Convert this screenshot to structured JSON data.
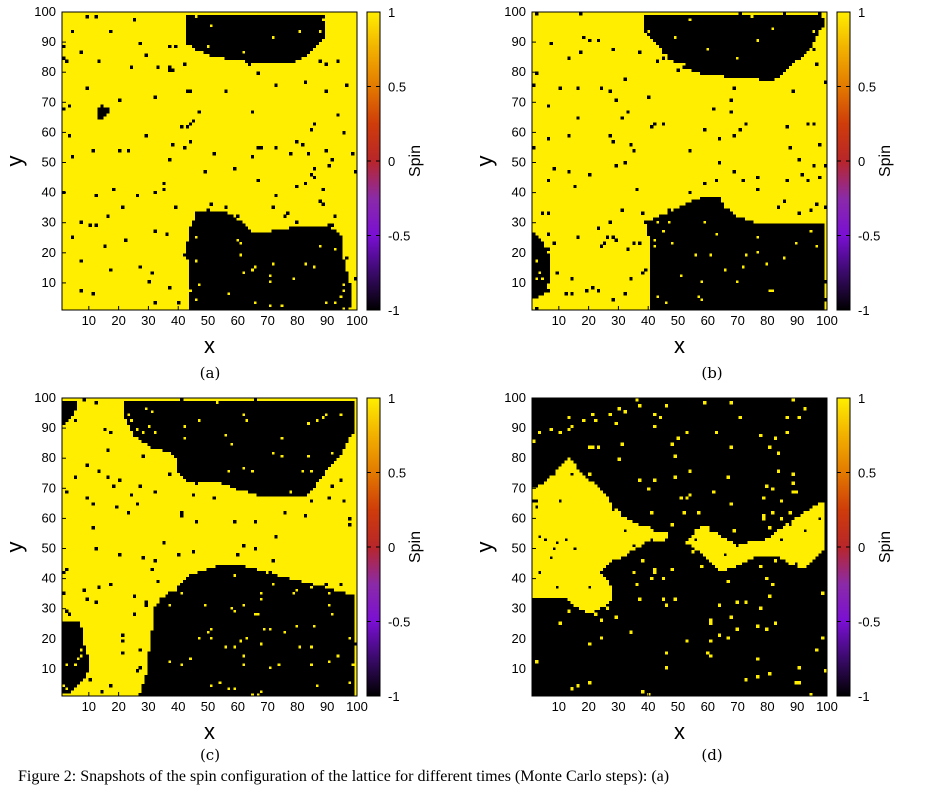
{
  "colors": {
    "up": "#ffee00",
    "down": "#000000",
    "colorbar_stops": [
      "#000000",
      "#3a0a6a",
      "#7a0fd4",
      "#8b2aa8",
      "#b8262a",
      "#cf3c0a",
      "#e37a00",
      "#f2b000",
      "#ffee00"
    ]
  },
  "chart_data": [
    {
      "type": "heatmap",
      "panel_label": "(a)",
      "xlabel": "x",
      "ylabel": "y",
      "xlim": [
        1,
        100
      ],
      "ylim": [
        1,
        100
      ],
      "xticks": [
        "10",
        "20",
        "30",
        "40",
        "50",
        "60",
        "70",
        "80",
        "90",
        "100"
      ],
      "yticks": [
        "10",
        "20",
        "30",
        "40",
        "50",
        "60",
        "70",
        "80",
        "90",
        "100"
      ],
      "colorbar": {
        "label": "Spin",
        "range": [
          -1,
          1
        ],
        "ticks": [
          "1",
          "0.5",
          "0",
          "-0.5",
          "-1"
        ]
      },
      "domain_model": {
        "background": 1,
        "regions": [
          {
            "value": -1,
            "polygon": [
              [
                44,
                1
              ],
              [
                44,
                16
              ],
              [
                42,
                19
              ],
              [
                44,
                28
              ],
              [
                46,
                33
              ],
              [
                55,
                34
              ],
              [
                60,
                31
              ],
              [
                65,
                27
              ],
              [
                72,
                27
              ],
              [
                78,
                28
              ],
              [
                85,
                29
              ],
              [
                92,
                28
              ],
              [
                95,
                26
              ],
              [
                96,
                18
              ],
              [
                98,
                10
              ],
              [
                99,
                6
              ],
              [
                98,
                1
              ]
            ]
          },
          {
            "value": -1,
            "polygon": [
              [
                43,
                100
              ],
              [
                43,
                90
              ],
              [
                46,
                88
              ],
              [
                51,
                86
              ],
              [
                56,
                85
              ],
              [
                63,
                84
              ],
              [
                70,
                84
              ],
              [
                74,
                84
              ],
              [
                80,
                84
              ],
              [
                84,
                86
              ],
              [
                89,
                91
              ],
              [
                90,
                95
              ],
              [
                88,
                100
              ]
            ]
          },
          {
            "value": -1,
            "polygon": [
              [
                12,
                69
              ],
              [
                16,
                69
              ],
              [
                17,
                67
              ],
              [
                15,
                65
              ],
              [
                13,
                65
              ]
            ]
          }
        ]
      }
    },
    {
      "type": "heatmap",
      "panel_label": "(b)",
      "xlabel": "x",
      "ylabel": "y",
      "xlim": [
        1,
        100
      ],
      "ylim": [
        1,
        100
      ],
      "xticks": [
        "10",
        "20",
        "30",
        "40",
        "50",
        "60",
        "70",
        "80",
        "90",
        "100"
      ],
      "yticks": [
        "10",
        "20",
        "30",
        "40",
        "50",
        "60",
        "70",
        "80",
        "90",
        "100"
      ],
      "colorbar": {
        "label": "Spin",
        "range": [
          -1,
          1
        ],
        "ticks": [
          "1",
          "0.5",
          "0",
          "-0.5",
          "-1"
        ]
      },
      "domain_model": {
        "background": 1,
        "regions": [
          {
            "value": -1,
            "polygon": [
              [
                41,
                1
              ],
              [
                41,
                20
              ],
              [
                40,
                26
              ],
              [
                39,
                30
              ],
              [
                44,
                32
              ],
              [
                49,
                34
              ],
              [
                55,
                37
              ],
              [
                60,
                39
              ],
              [
                64,
                39
              ],
              [
                66,
                35
              ],
              [
                70,
                32
              ],
              [
                76,
                30
              ],
              [
                84,
                30
              ],
              [
                92,
                30
              ],
              [
                100,
                30
              ],
              [
                100,
                1
              ]
            ]
          },
          {
            "value": -1,
            "polygon": [
              [
                39,
                100
              ],
              [
                39,
                94
              ],
              [
                43,
                90
              ],
              [
                47,
                85
              ],
              [
                52,
                82
              ],
              [
                58,
                80
              ],
              [
                66,
                79
              ],
              [
                72,
                78
              ],
              [
                76,
                79
              ],
              [
                81,
                77
              ],
              [
                86,
                80
              ],
              [
                90,
                84
              ],
              [
                94,
                87
              ],
              [
                98,
                94
              ],
              [
                100,
                97
              ],
              [
                100,
                100
              ]
            ]
          },
          {
            "value": -1,
            "polygon": [
              [
                1,
                4
              ],
              [
                5,
                6
              ],
              [
                7,
                12
              ],
              [
                6,
                20
              ],
              [
                3,
                25
              ],
              [
                1,
                27
              ]
            ]
          }
        ]
      }
    },
    {
      "type": "heatmap",
      "panel_label": "(c)",
      "xlabel": "x",
      "ylabel": "y",
      "xlim": [
        1,
        100
      ],
      "ylim": [
        1,
        100
      ],
      "xticks": [
        "10",
        "20",
        "30",
        "40",
        "50",
        "60",
        "70",
        "80",
        "90",
        "100"
      ],
      "yticks": [
        "10",
        "20",
        "30",
        "40",
        "50",
        "60",
        "70",
        "80",
        "90",
        "100"
      ],
      "colorbar": {
        "label": "Spin",
        "range": [
          -1,
          1
        ],
        "ticks": [
          "1",
          "0.5",
          "0",
          "-0.5",
          "-1"
        ]
      },
      "domain_model": {
        "background": 1,
        "regions": [
          {
            "value": -1,
            "polygon": [
              [
                22,
                100
              ],
              [
                22,
                94
              ],
              [
                25,
                88
              ],
              [
                31,
                84
              ],
              [
                38,
                82
              ],
              [
                40,
                80
              ],
              [
                40,
                76
              ],
              [
                43,
                73
              ],
              [
                52,
                73
              ],
              [
                60,
                70
              ],
              [
                67,
                68
              ],
              [
                76,
                67
              ],
              [
                84,
                68
              ],
              [
                90,
                76
              ],
              [
                94,
                80
              ],
              [
                98,
                87
              ],
              [
                100,
                89
              ],
              [
                100,
                100
              ]
            ]
          },
          {
            "value": -1,
            "polygon": [
              [
                27,
                1
              ],
              [
                29,
                7
              ],
              [
                30,
                15
              ],
              [
                31,
                22
              ],
              [
                32,
                30
              ],
              [
                37,
                35
              ],
              [
                44,
                41
              ],
              [
                50,
                43
              ],
              [
                56,
                45
              ],
              [
                63,
                44
              ],
              [
                70,
                42
              ],
              [
                78,
                40
              ],
              [
                86,
                38
              ],
              [
                93,
                36
              ],
              [
                100,
                34
              ],
              [
                100,
                1
              ]
            ]
          },
          {
            "value": -1,
            "polygon": [
              [
                1,
                1
              ],
              [
                4,
                2
              ],
              [
                7,
                5
              ],
              [
                9,
                8
              ],
              [
                10,
                11
              ],
              [
                8,
                18
              ],
              [
                8,
                22
              ],
              [
                6,
                26
              ],
              [
                1,
                26
              ]
            ]
          },
          {
            "value": -1,
            "polygon": [
              [
                1,
                100
              ],
              [
                6,
                100
              ],
              [
                6,
                98
              ],
              [
                4,
                94
              ],
              [
                1,
                91
              ]
            ]
          }
        ]
      }
    },
    {
      "type": "heatmap",
      "panel_label": "(d)",
      "xlabel": "x",
      "ylabel": "y",
      "xlim": [
        1,
        100
      ],
      "ylim": [
        1,
        100
      ],
      "xticks": [
        "10",
        "20",
        "30",
        "40",
        "50",
        "60",
        "70",
        "80",
        "90",
        "100"
      ],
      "yticks": [
        "10",
        "20",
        "30",
        "40",
        "50",
        "60",
        "70",
        "80",
        "90",
        "100"
      ],
      "colorbar": {
        "label": "Spin",
        "range": [
          -1,
          1
        ],
        "ticks": [
          "1",
          "0.5",
          "0",
          "-0.5",
          "-1"
        ]
      },
      "domain_model": {
        "background": -1,
        "regions": [
          {
            "value": 1,
            "polygon": [
              [
                1,
                70
              ],
              [
                6,
                73
              ],
              [
                10,
                77
              ],
              [
                13,
                81
              ],
              [
                16,
                77
              ],
              [
                20,
                73
              ],
              [
                24,
                70
              ],
              [
                27,
                66
              ],
              [
                31,
                61
              ],
              [
                37,
                58
              ],
              [
                41,
                57
              ],
              [
                42,
                54
              ],
              [
                39,
                52
              ],
              [
                33,
                48
              ],
              [
                28,
                46
              ],
              [
                24,
                42
              ],
              [
                27,
                38
              ],
              [
                28,
                33
              ],
              [
                24,
                30
              ],
              [
                20,
                28
              ],
              [
                15,
                31
              ],
              [
                11,
                34
              ],
              [
                6,
                34
              ],
              [
                1,
                34
              ]
            ]
          },
          {
            "value": 1,
            "polygon": [
              [
                53,
                52
              ],
              [
                56,
                56
              ],
              [
                59,
                58
              ],
              [
                62,
                56
              ],
              [
                65,
                54
              ],
              [
                69,
                52
              ],
              [
                74,
                52
              ],
              [
                80,
                53
              ],
              [
                84,
                56
              ],
              [
                90,
                60
              ],
              [
                96,
                64
              ],
              [
                100,
                66
              ],
              [
                100,
                50
              ],
              [
                96,
                46
              ],
              [
                93,
                43
              ],
              [
                88,
                45
              ],
              [
                83,
                48
              ],
              [
                77,
                48
              ],
              [
                70,
                44
              ],
              [
                64,
                42
              ],
              [
                60,
                47
              ],
              [
                56,
                50
              ]
            ]
          },
          {
            "value": 1,
            "polygon": [
              [
                40,
                55
              ],
              [
                44,
                56
              ],
              [
                47,
                55
              ],
              [
                46,
                53
              ],
              [
                42,
                52
              ]
            ]
          }
        ]
      }
    }
  ],
  "bottom_caption": "Figure 2: Snapshots of the spin configuration of the lattice for different times (Monte Carlo steps): (a)"
}
